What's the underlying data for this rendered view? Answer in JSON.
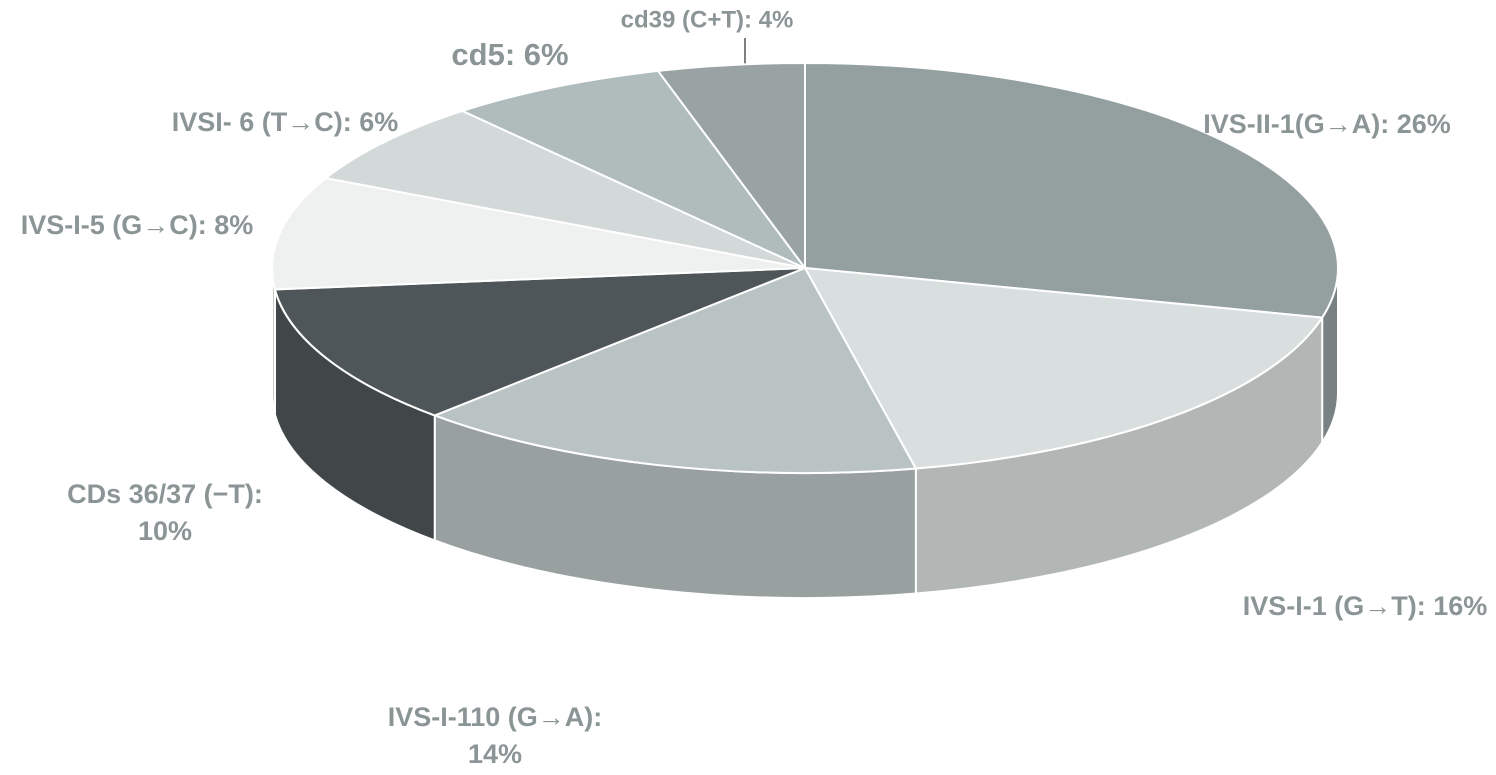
{
  "chart_data": {
    "type": "pie",
    "values": [
      26,
      16,
      14,
      10,
      8,
      6,
      6,
      4
    ],
    "value_labels": [
      [
        "IVS-II-1(G→A): 26%"
      ],
      [
        "IVS-I-1 (G→T): 16%"
      ],
      [
        "IVS-I-110 (G→A):",
        "14%"
      ],
      [
        "CDs 36/37 (−T):",
        "10%"
      ],
      [
        "IVS-I-5 (G→C): 8%"
      ],
      [
        "IVSI- 6 (T→C): 6%"
      ],
      [
        "cd5: 6%"
      ],
      [
        "cd39 (C+T):  4%"
      ]
    ],
    "colors": [
      "#949fa0",
      "#d9dfde",
      "#b9c3c3",
      "#4f5659",
      "#eef1f0",
      "#d3d9d8",
      "#b0bbbb",
      "#9aa3a4"
    ]
  }
}
